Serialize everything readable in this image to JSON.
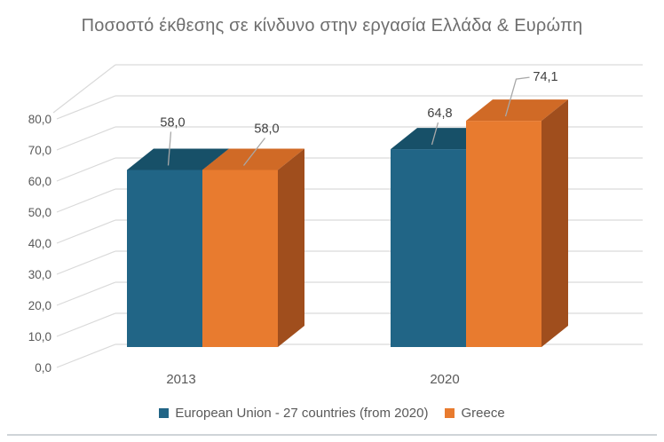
{
  "title": "Ποσοστό έκθεσης σε κίνδυνο στην εργασία Ελλάδα & Ευρώπη",
  "chart_data": {
    "type": "bar",
    "variant": "3d-clustered-column",
    "title": "Ποσοστό έκθεσης σε κίνδυνο στην εργασία Ελλάδα & Ευρώπη",
    "categories": [
      "2013",
      "2020"
    ],
    "series": [
      {
        "name": "European Union - 27 countries (from 2020)",
        "values": [
          58.0,
          64.8
        ],
        "data_labels": [
          "58,0",
          "64,8"
        ],
        "color": "#216586",
        "top_color": "#175068",
        "side_color": "#133d52"
      },
      {
        "name": "Greece",
        "values": [
          58.0,
          74.1
        ],
        "data_labels": [
          "58,0",
          "74,1"
        ],
        "color": "#e87b2f",
        "top_color": "#d06a26",
        "side_color": "#a04e1d"
      }
    ],
    "y_axis": {
      "min": 0,
      "max": 80,
      "step": 10,
      "tick_labels": [
        "0,0",
        "10,0",
        "20,0",
        "30,0",
        "40,0",
        "50,0",
        "60,0",
        "70,0",
        "80,0"
      ]
    },
    "x_axis": {
      "tick_labels": [
        "2013",
        "2020"
      ]
    },
    "legend": {
      "position": "bottom",
      "entries": [
        "European Union - 27 countries (from 2020)",
        "Greece"
      ]
    },
    "grid": true,
    "number_format": "comma-decimal"
  },
  "colors": {
    "background": "#ffffff",
    "title_text": "#6e6e6e",
    "axis_text": "#595959",
    "category_text": "#595959",
    "data_label_text": "#3f3f3f",
    "legend_text": "#595959",
    "gridline": "#d9d9d9",
    "leader_line": "#a8a8a8",
    "divider": "#cfd4d8",
    "series_blue": "#216586",
    "series_orange": "#e87b2f"
  }
}
